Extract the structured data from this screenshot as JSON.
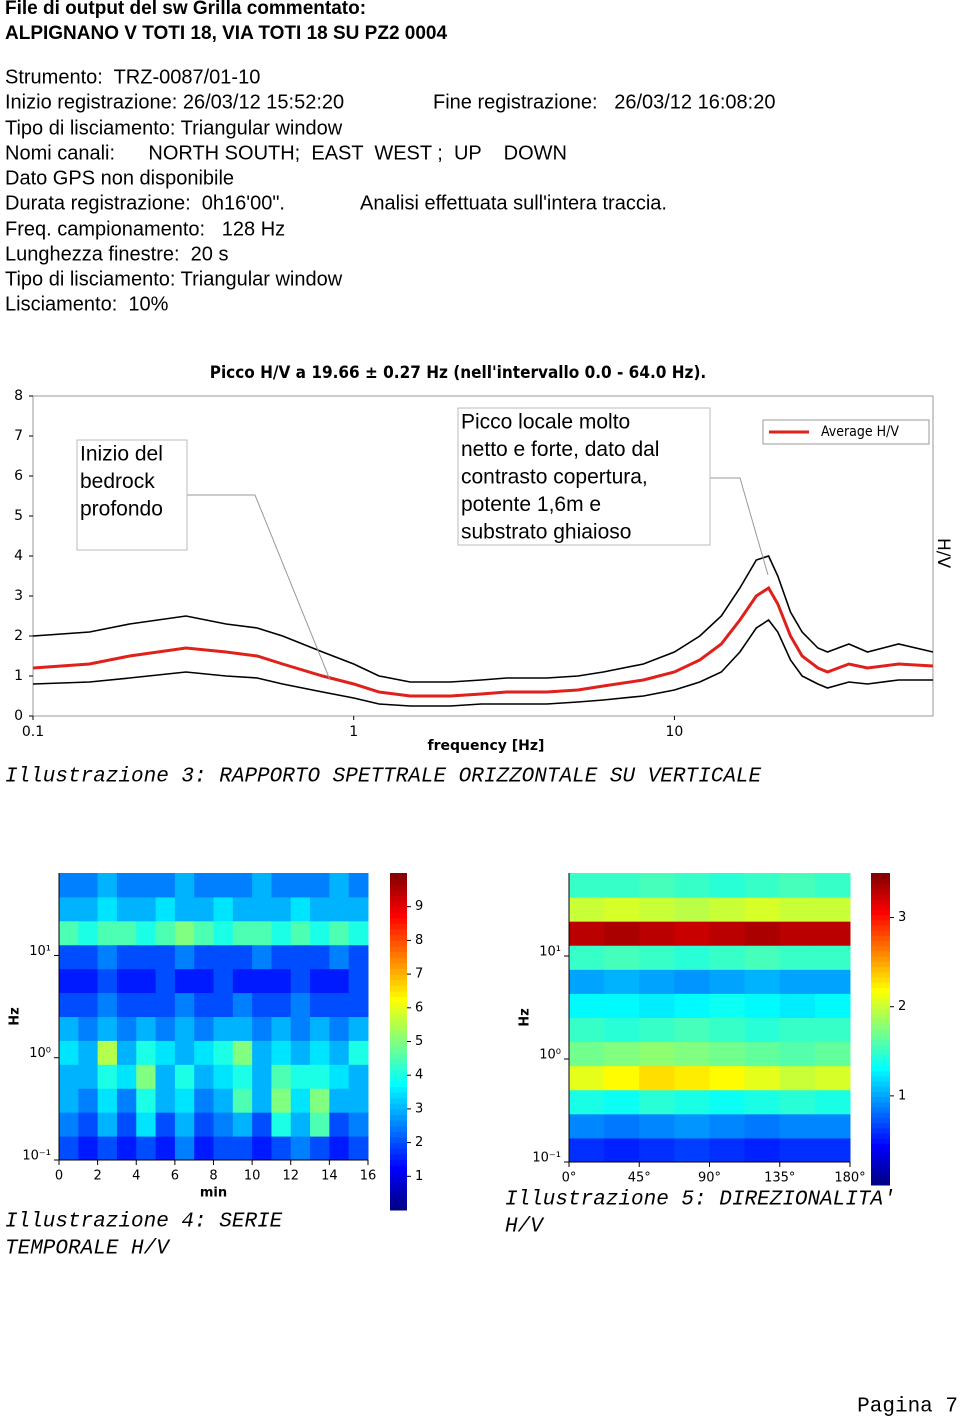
{
  "header": {
    "title": "File di output del sw Grilla commentato:",
    "subtitle": "ALPIGNANO V TOTI 18, VIA TOTI 18 SU PZ2 0004"
  },
  "info": [
    [
      "Strumento:  TRZ-0087/01-10"
    ],
    [
      "Inizio registrazione: 26/03/12 15:52:20",
      "Fine registrazione:   26/03/12 16:08:20"
    ],
    [
      "Tipo di lisciamento: Triangular window"
    ],
    [
      "Nomi canali:      NORTH SOUTH;  EAST  WEST ;  UP    DOWN"
    ],
    [
      "Dato GPS non disponibile"
    ],
    [
      "Durata registrazione:  0h16'00\".",
      "Analisi effettuata sull'intera traccia."
    ],
    [
      "Freq. campionamento:   128 Hz"
    ],
    [
      "Lunghezza finestre:  20 s"
    ],
    [
      "Tipo di lisciamento: Triangular window"
    ],
    [
      "Lisciamento:  10%"
    ]
  ],
  "captions": [
    [
      "Illustrazione 3: RAPPORTO SPETTRALE ORIZZONTALE SU VERTICALE"
    ],
    [
      "Illustrazione 4: SERIE",
      "TEMPORALE H/V"
    ],
    [
      "Illustrazione 5: DIREZIONALITA'",
      "H/V"
    ]
  ],
  "footer": "Pagina 7",
  "chart_data": [
    {
      "type": "line",
      "title": "Picco H/V a 19.66 ± 0.27 Hz (nell'intervallo 0.0 - 64.0 Hz).",
      "xlabel": "frequency [Hz]",
      "ylabel": "H/V",
      "log_x": true,
      "legend": "upper right",
      "x": [
        0.1,
        0.15,
        0.2,
        0.3,
        0.4,
        0.5,
        0.6,
        0.8,
        1,
        1.2,
        1.5,
        2,
        2.5,
        3,
        4,
        5,
        6,
        8,
        10,
        12,
        14,
        16,
        18,
        19.66,
        21,
        23,
        25,
        28,
        30,
        35,
        40,
        50,
        64
      ],
      "series": [
        {
          "name": "Average H/V",
          "color": "#e0201b",
          "values": [
            1.2,
            1.3,
            1.5,
            1.7,
            1.6,
            1.5,
            1.3,
            1.0,
            0.8,
            0.6,
            0.5,
            0.5,
            0.55,
            0.6,
            0.6,
            0.65,
            0.75,
            0.9,
            1.1,
            1.4,
            1.8,
            2.4,
            3.0,
            3.2,
            2.8,
            2.0,
            1.5,
            1.2,
            1.1,
            1.3,
            1.2,
            1.3,
            1.25
          ]
        },
        {
          "color": "#000000",
          "values": [
            2.0,
            2.1,
            2.3,
            2.5,
            2.3,
            2.2,
            2.0,
            1.6,
            1.3,
            1.0,
            0.85,
            0.85,
            0.9,
            0.95,
            0.95,
            1.0,
            1.1,
            1.3,
            1.6,
            2.0,
            2.5,
            3.2,
            3.9,
            4.0,
            3.5,
            2.6,
            2.1,
            1.7,
            1.6,
            1.8,
            1.6,
            1.8,
            1.6
          ]
        },
        {
          "color": "#000000",
          "values": [
            0.8,
            0.85,
            0.95,
            1.1,
            1.0,
            0.95,
            0.8,
            0.6,
            0.45,
            0.3,
            0.25,
            0.25,
            0.3,
            0.3,
            0.3,
            0.35,
            0.4,
            0.5,
            0.65,
            0.85,
            1.1,
            1.6,
            2.2,
            2.4,
            2.1,
            1.4,
            1.0,
            0.8,
            0.7,
            0.85,
            0.8,
            0.9,
            0.9
          ]
        }
      ],
      "xlim": [
        0.1,
        64
      ],
      "ylim": [
        0,
        8
      ],
      "xticks": [
        0.1,
        1,
        10
      ],
      "yticks": [
        0,
        1,
        2,
        3,
        4,
        5,
        6,
        7,
        8
      ],
      "annotations": [
        {
          "lines": [
            "Inizio del",
            "bedrock",
            "profondo"
          ]
        },
        {
          "lines": [
            "Picco locale molto",
            "netto e forte, dato dal",
            "contrasto copertura,",
            "potente 1,6m e",
            "substrato ghiaioso"
          ]
        }
      ]
    },
    {
      "type": "heatmap",
      "xlabel": "min",
      "ylabel": "Hz",
      "log_y": true,
      "colormap": "jet",
      "xlim": [
        0,
        16
      ],
      "ylim": [
        0.1,
        64
      ],
      "xticks": [
        0,
        2,
        4,
        6,
        8,
        10,
        12,
        14,
        16
      ],
      "yticks": [
        {
          "value": 0.1,
          "label": "10⁻¹"
        },
        {
          "value": 1,
          "label": "10⁰"
        },
        {
          "value": 10,
          "label": "10¹"
        }
      ],
      "clim": [
        0,
        10
      ],
      "cticks": [
        1,
        2,
        3,
        4,
        5,
        6,
        7,
        8,
        9
      ],
      "z": [
        [
          2,
          1.5,
          2,
          1.5,
          2,
          1.5,
          2.5,
          1.5,
          2,
          2,
          1.5,
          2,
          2.5,
          2,
          1.5,
          2
        ],
        [
          2.5,
          2,
          3,
          2,
          3.5,
          2,
          3,
          2,
          2.5,
          3,
          2,
          4,
          3,
          4.5,
          2,
          2.5
        ],
        [
          3,
          2.5,
          3.5,
          2.5,
          4,
          3,
          3.5,
          2.5,
          3,
          4.5,
          3,
          5,
          3.5,
          5,
          3,
          3
        ],
        [
          3,
          3,
          4,
          3.5,
          5,
          3,
          4,
          3,
          3.5,
          4,
          3,
          4.5,
          4,
          4,
          3.5,
          3
        ],
        [
          3.5,
          3,
          5.5,
          3,
          4,
          3.5,
          3,
          3.5,
          4,
          5,
          3,
          3.5,
          3,
          3.5,
          3,
          4
        ],
        [
          3,
          2.5,
          3,
          2.5,
          3,
          2.5,
          3,
          2.5,
          3,
          3,
          2.5,
          3,
          2.5,
          3,
          2.5,
          3
        ],
        [
          2,
          2,
          2.5,
          2,
          2,
          2,
          2.5,
          2,
          2,
          2.5,
          2,
          2,
          2.5,
          2,
          2,
          2
        ],
        [
          1.5,
          1.5,
          2,
          1.5,
          1.5,
          2,
          1.5,
          1.5,
          2,
          1.5,
          1.5,
          1.5,
          2,
          1.5,
          1.5,
          2
        ],
        [
          2,
          2,
          2.5,
          2,
          2,
          2,
          2.5,
          2,
          2,
          2,
          2.5,
          2,
          2,
          2,
          2.5,
          2
        ],
        [
          4.5,
          4,
          4.5,
          4.5,
          4,
          4.5,
          5,
          4.5,
          4,
          4.5,
          4.5,
          4,
          4.5,
          4,
          4.5,
          4
        ],
        [
          3,
          3,
          3.5,
          3,
          3,
          3.5,
          3,
          3,
          3.5,
          3,
          3,
          3,
          3.5,
          3,
          3,
          3
        ],
        [
          2.5,
          2.5,
          3,
          2.5,
          2.5,
          2.5,
          3,
          2.5,
          2.5,
          2.5,
          3,
          2.5,
          2.5,
          2.5,
          3,
          2.5
        ]
      ]
    },
    {
      "type": "heatmap",
      "ylabel": "Hz",
      "log_y": true,
      "colormap": "jet",
      "xlim": [
        0,
        180
      ],
      "ylim": [
        0.1,
        64
      ],
      "xticks": [
        {
          "value": 0,
          "label": "0°"
        },
        {
          "value": 45,
          "label": "45°"
        },
        {
          "value": 90,
          "label": "90°"
        },
        {
          "value": 135,
          "label": "135°"
        },
        {
          "value": 180,
          "label": "180°"
        }
      ],
      "yticks": [
        {
          "value": 0.1,
          "label": "10⁻¹"
        },
        {
          "value": 1,
          "label": "10⁰"
        },
        {
          "value": 10,
          "label": "10¹"
        }
      ],
      "clim": [
        0,
        3.5
      ],
      "cticks": [
        1,
        2,
        3
      ],
      "z": [
        [
          0.6,
          0.55,
          0.6,
          0.65,
          0.6,
          0.55,
          0.6,
          0.6
        ],
        [
          0.9,
          0.85,
          0.9,
          0.95,
          0.9,
          0.85,
          0.9,
          0.9
        ],
        [
          1.4,
          1.35,
          1.45,
          1.4,
          1.35,
          1.4,
          1.45,
          1.4
        ],
        [
          2.1,
          2.2,
          2.3,
          2.25,
          2.2,
          2.1,
          2.0,
          2.05
        ],
        [
          1.7,
          1.75,
          1.8,
          1.75,
          1.7,
          1.65,
          1.6,
          1.65
        ],
        [
          1.5,
          1.45,
          1.5,
          1.55,
          1.5,
          1.45,
          1.5,
          1.5
        ],
        [
          1.3,
          1.3,
          1.25,
          1.3,
          1.35,
          1.3,
          1.25,
          1.3
        ],
        [
          1.0,
          1.05,
          1.0,
          0.95,
          1.0,
          1.05,
          1.0,
          1.0
        ],
        [
          1.5,
          1.55,
          1.5,
          1.45,
          1.5,
          1.55,
          1.5,
          1.5
        ],
        [
          3.3,
          3.35,
          3.3,
          3.25,
          3.3,
          3.35,
          3.3,
          3.3
        ],
        [
          2.0,
          2.05,
          2.0,
          1.95,
          2.0,
          2.05,
          2.0,
          2.0
        ],
        [
          1.5,
          1.5,
          1.55,
          1.5,
          1.45,
          1.5,
          1.55,
          1.5
        ]
      ]
    }
  ]
}
